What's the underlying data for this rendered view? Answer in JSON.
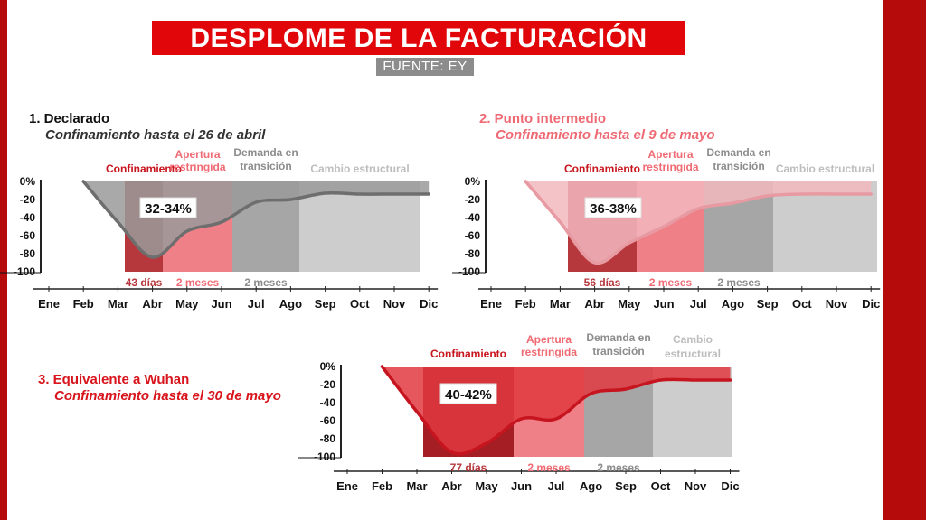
{
  "header": {
    "title": "DESPLOME DE LA FACTURACIÓN",
    "source": "FUENTE: EY"
  },
  "months": [
    "Ene",
    "Feb",
    "Mar",
    "Abr",
    "May",
    "Jun",
    "Jul",
    "Ago",
    "Sep",
    "Oct",
    "Nov",
    "Dic"
  ],
  "y_ticks": [
    "0%",
    "-20",
    "-40",
    "-60",
    "-80",
    "-100"
  ],
  "phase_labels": {
    "confinement": "Confinamiento",
    "restricted_line1": "Apertura",
    "restricted_line2": "restringida",
    "transition_line1": "Demanda en",
    "transition_line2": "transición",
    "structural": "Cambio estructural",
    "structural_line1": "Cambio",
    "structural_line2": "estructural"
  },
  "colors": {
    "brand_red": "#e0060a",
    "dark_red": "#b50b0b",
    "source_gray": "#8c8c8c",
    "s1_curve": "#6e6e6e",
    "s1_fill": "#9a9a9a",
    "s1_conf": "#b6383d",
    "s2_curve": "#e79aa1",
    "s2_fill": "#f2b9be",
    "s2_conf": "#b6383d",
    "s2_title": "#ee6a74",
    "s3_curve": "#c71520",
    "s3_fill": "#e0393f",
    "s3_conf": "#a41e24",
    "restricted": "#ef8087",
    "transition": "#a6a6a6",
    "structural": "#cdcdcd"
  },
  "scenarios": [
    {
      "number_title": "1. Declarado",
      "subtitle": "Confinamiento hasta el 26 de abril",
      "drop_label": "32-34%",
      "durations": [
        "43 días",
        "2 meses",
        "2 meses"
      ]
    },
    {
      "number_title": "2. Punto intermedio",
      "subtitle": "Confinamiento hasta el 9 de mayo",
      "drop_label": "36-38%",
      "durations": [
        "56 días",
        "2 meses",
        "2 meses"
      ]
    },
    {
      "number_title": "3. Equivalente a Wuhan",
      "subtitle": "Confinamiento hasta el 30 de mayo",
      "drop_label": "40-42%",
      "durations": [
        "77 días",
        "2 meses",
        "2 meses"
      ]
    }
  ],
  "chart_data": [
    {
      "type": "area",
      "title": "1. Declarado",
      "subtitle": "Confinamiento hasta el 26 de abril",
      "x_unit": "month",
      "ylim": [
        -100,
        0
      ],
      "series": [
        {
          "x": [
            "Feb",
            "Mar",
            "Abr",
            "May",
            "Jun",
            "Jul",
            "Ago",
            "Sep",
            "Oct",
            "Nov",
            "Dic"
          ],
          "values": [
            0,
            -45,
            -84,
            -55,
            -45,
            -23,
            -20,
            -13,
            -14,
            -14,
            -14
          ]
        }
      ],
      "phases": [
        {
          "label": "Confinamiento",
          "start": "Mar",
          "end": "Abr",
          "duration": "43 días"
        },
        {
          "label": "Apertura restringida",
          "start": "Abr",
          "end": "Jun",
          "duration": "2 meses"
        },
        {
          "label": "Demanda en transición",
          "start": "Jun",
          "end": "Ago",
          "duration": "2 meses"
        },
        {
          "label": "Cambio estructural",
          "start": "Ago",
          "end": "Dic"
        }
      ],
      "annotation": "32-34%"
    },
    {
      "type": "area",
      "title": "2. Punto intermedio",
      "subtitle": "Confinamiento hasta el 9 de mayo",
      "x_unit": "month",
      "ylim": [
        -100,
        0
      ],
      "series": [
        {
          "x": [
            "Feb",
            "Mar",
            "Abr",
            "May",
            "Jun",
            "Jul",
            "Ago",
            "Sep",
            "Oct",
            "Nov",
            "Dic"
          ],
          "values": [
            0,
            -45,
            -90,
            -68,
            -50,
            -30,
            -24,
            -16,
            -14,
            -14,
            -14
          ]
        }
      ],
      "phases": [
        {
          "label": "Confinamiento",
          "start": "Mar",
          "end": "May",
          "duration": "56 días"
        },
        {
          "label": "Apertura restringida",
          "start": "May",
          "end": "Jul",
          "duration": "2 meses"
        },
        {
          "label": "Demanda en transición",
          "start": "Jul",
          "end": "Sep",
          "duration": "2 meses"
        },
        {
          "label": "Cambio estructural",
          "start": "Sep",
          "end": "Dic"
        }
      ],
      "annotation": "36-38%"
    },
    {
      "type": "area",
      "title": "3. Equivalente a Wuhan",
      "subtitle": "Confinamiento hasta el 30 de mayo",
      "x_unit": "month",
      "ylim": [
        -100,
        0
      ],
      "series": [
        {
          "x": [
            "Feb",
            "Mar",
            "Abr",
            "May",
            "Jun",
            "Jul",
            "Ago",
            "Sep",
            "Oct",
            "Nov",
            "Dic"
          ],
          "values": [
            0,
            -50,
            -95,
            -85,
            -58,
            -58,
            -30,
            -25,
            -15,
            -15,
            -15
          ]
        }
      ],
      "phases": [
        {
          "label": "Confinamiento",
          "start": "Mar",
          "end": "May",
          "duration": "77 días"
        },
        {
          "label": "Apertura restringida",
          "start": "Jun",
          "end": "Jul",
          "duration": "2 meses"
        },
        {
          "label": "Demanda en transición",
          "start": "Ago",
          "end": "Sep",
          "duration": "2 meses"
        },
        {
          "label": "Cambio estructural",
          "start": "Oct",
          "end": "Dic"
        }
      ],
      "annotation": "40-42%"
    }
  ]
}
